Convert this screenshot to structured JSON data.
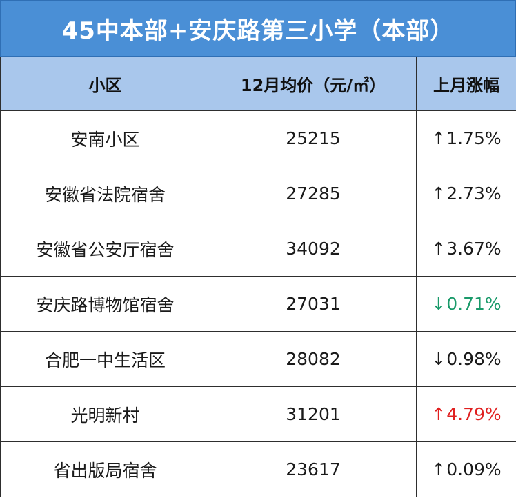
{
  "title": "45中本部+安庆路第三小学（本部）",
  "colors": {
    "title_bg": "#4a8fd6",
    "header_bg": "#a9c7ec",
    "default_text": "#1a1a1a",
    "green": "#1a9a6a",
    "red": "#e02020"
  },
  "table": {
    "headers": [
      "小区",
      "12月均价（元/㎡）",
      "上月涨幅"
    ],
    "rows": [
      {
        "name": "安南小区",
        "price": "25215",
        "arrow": "↑",
        "change": "1.75%",
        "color": "#1a1a1a"
      },
      {
        "name": "安徽省法院宿舍",
        "price": "27285",
        "arrow": "↑",
        "change": "2.73%",
        "color": "#1a1a1a"
      },
      {
        "name": "安徽省公安厅宿舍",
        "price": "34092",
        "arrow": "↑",
        "change": "3.67%",
        "color": "#1a1a1a"
      },
      {
        "name": "安庆路博物馆宿舍",
        "price": "27031",
        "arrow": "↓",
        "change": "0.71%",
        "color": "#1a9a6a"
      },
      {
        "name": "合肥一中生活区",
        "price": "28082",
        "arrow": "↓",
        "change": "0.98%",
        "color": "#1a1a1a"
      },
      {
        "name": "光明新村",
        "price": "31201",
        "arrow": "↑",
        "change": "4.79%",
        "color": "#e02020"
      },
      {
        "name": "省出版局宿舍",
        "price": "23617",
        "arrow": "↑",
        "change": "0.09%",
        "color": "#1a1a1a"
      }
    ]
  }
}
